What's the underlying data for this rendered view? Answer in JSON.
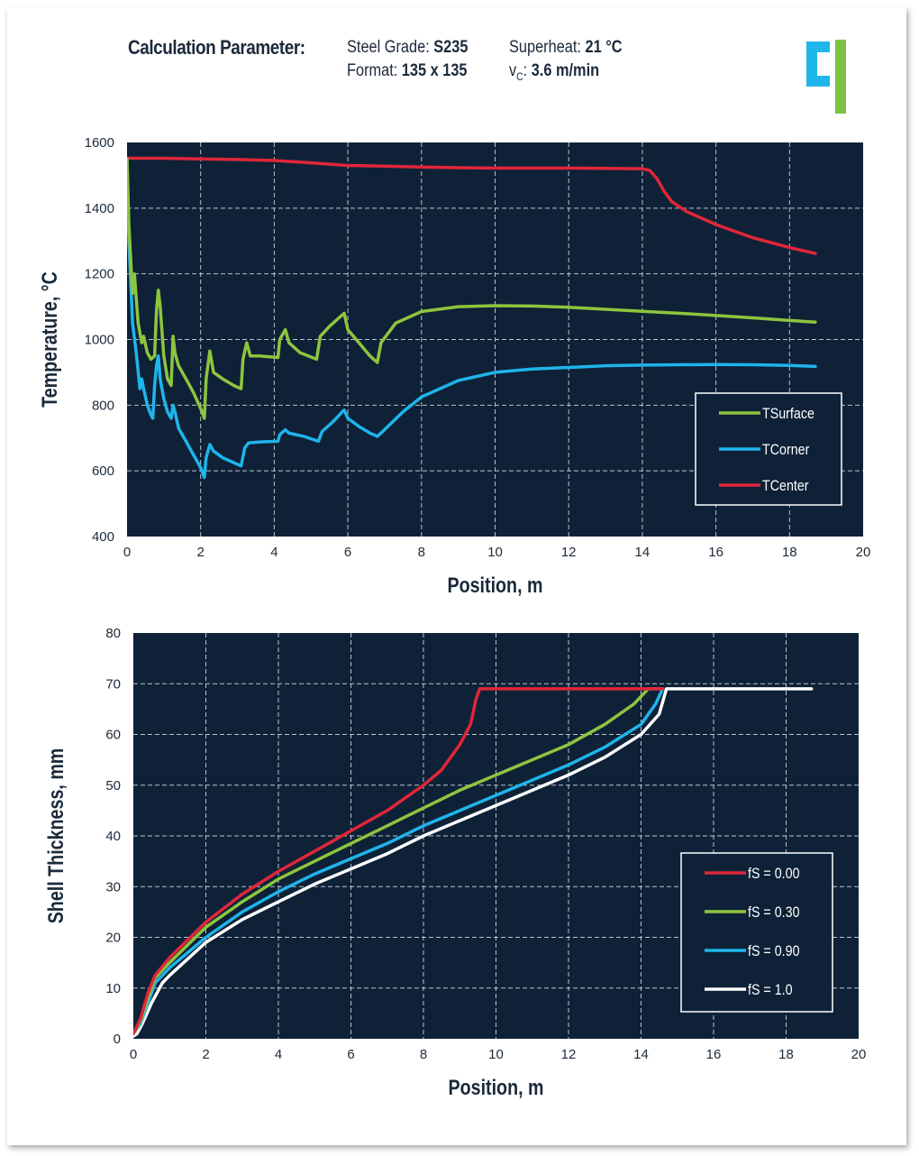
{
  "header": {
    "title": "Calculation Parameter:",
    "steel_grade_label": "Steel Grade: ",
    "steel_grade_value": "S235",
    "format_label": "Format: ",
    "format_value": "135 x 135",
    "superheat_label": "Superheat: ",
    "superheat_value": "21 °C",
    "vc_label_main": "v",
    "vc_label_sub": "C",
    "vc_label_colon": ": ",
    "vc_value": "3.6 m/min"
  },
  "logo": {
    "icon": "company-logo-icon",
    "colors": [
      "#1fb6e9",
      "#7cc242"
    ]
  },
  "colors": {
    "plot_bg": "#0e2137",
    "grid": "#b9c2cc",
    "red": "#e0263a",
    "green": "#8dc53e",
    "blue": "#1fb4ea",
    "white": "#ffffff"
  },
  "chart_data": [
    {
      "type": "line",
      "xlabel": "Position, m",
      "ylabel": "Temperature, °C",
      "xlim": [
        0,
        20
      ],
      "ylim": [
        400,
        1600
      ],
      "xticks": [
        0,
        2,
        4,
        6,
        8,
        10,
        12,
        14,
        16,
        18,
        20
      ],
      "yticks": [
        400,
        600,
        800,
        1000,
        1200,
        1400,
        1600
      ],
      "grid": true,
      "legend_position": "bottom-right",
      "series": [
        {
          "name": "TSurface",
          "color": "#8dc53e",
          "points": [
            [
              0,
              1550
            ],
            [
              0.05,
              1350
            ],
            [
              0.15,
              1140
            ],
            [
              0.2,
              1200
            ],
            [
              0.3,
              1050
            ],
            [
              0.4,
              990
            ],
            [
              0.45,
              1010
            ],
            [
              0.55,
              960
            ],
            [
              0.65,
              940
            ],
            [
              0.75,
              950
            ],
            [
              0.8,
              1090
            ],
            [
              0.85,
              1150
            ],
            [
              0.9,
              1100
            ],
            [
              1.0,
              950
            ],
            [
              1.1,
              880
            ],
            [
              1.2,
              860
            ],
            [
              1.25,
              1010
            ],
            [
              1.3,
              960
            ],
            [
              1.4,
              920
            ],
            [
              1.6,
              880
            ],
            [
              1.8,
              840
            ],
            [
              2.0,
              790
            ],
            [
              2.1,
              760
            ],
            [
              2.15,
              880
            ],
            [
              2.25,
              965
            ],
            [
              2.35,
              900
            ],
            [
              2.6,
              880
            ],
            [
              2.9,
              860
            ],
            [
              3.1,
              850
            ],
            [
              3.15,
              940
            ],
            [
              3.25,
              990
            ],
            [
              3.35,
              950
            ],
            [
              3.6,
              950
            ],
            [
              4.1,
              945
            ],
            [
              4.15,
              1000
            ],
            [
              4.3,
              1030
            ],
            [
              4.4,
              990
            ],
            [
              4.7,
              960
            ],
            [
              5.15,
              940
            ],
            [
              5.25,
              1010
            ],
            [
              5.5,
              1040
            ],
            [
              5.8,
              1070
            ],
            [
              5.9,
              1080
            ],
            [
              6.0,
              1030
            ],
            [
              6.3,
              990
            ],
            [
              6.6,
              950
            ],
            [
              6.8,
              930
            ],
            [
              6.9,
              990
            ],
            [
              7.3,
              1050
            ],
            [
              8,
              1085
            ],
            [
              9,
              1100
            ],
            [
              10,
              1103
            ],
            [
              11,
              1102
            ],
            [
              12,
              1098
            ],
            [
              13,
              1092
            ],
            [
              14,
              1086
            ],
            [
              15,
              1080
            ],
            [
              16,
              1073
            ],
            [
              17,
              1066
            ],
            [
              18,
              1058
            ],
            [
              18.7,
              1053
            ]
          ]
        },
        {
          "name": "TCorner",
          "color": "#1fb4ea",
          "points": [
            [
              0,
              1550
            ],
            [
              0.05,
              1300
            ],
            [
              0.15,
              1050
            ],
            [
              0.25,
              960
            ],
            [
              0.35,
              850
            ],
            [
              0.4,
              880
            ],
            [
              0.45,
              850
            ],
            [
              0.55,
              800
            ],
            [
              0.65,
              770
            ],
            [
              0.7,
              760
            ],
            [
              0.75,
              860
            ],
            [
              0.8,
              920
            ],
            [
              0.85,
              950
            ],
            [
              0.9,
              880
            ],
            [
              1.0,
              820
            ],
            [
              1.1,
              780
            ],
            [
              1.2,
              760
            ],
            [
              1.25,
              800
            ],
            [
              1.3,
              780
            ],
            [
              1.4,
              730
            ],
            [
              1.6,
              690
            ],
            [
              1.8,
              650
            ],
            [
              2.0,
              610
            ],
            [
              2.1,
              580
            ],
            [
              2.15,
              640
            ],
            [
              2.25,
              680
            ],
            [
              2.35,
              660
            ],
            [
              2.6,
              640
            ],
            [
              2.9,
              625
            ],
            [
              3.1,
              615
            ],
            [
              3.2,
              670
            ],
            [
              3.3,
              685
            ],
            [
              3.6,
              688
            ],
            [
              4.1,
              690
            ],
            [
              4.15,
              710
            ],
            [
              4.3,
              725
            ],
            [
              4.4,
              715
            ],
            [
              4.8,
              705
            ],
            [
              5.2,
              690
            ],
            [
              5.3,
              720
            ],
            [
              5.6,
              750
            ],
            [
              5.85,
              780
            ],
            [
              5.9,
              785
            ],
            [
              6.0,
              760
            ],
            [
              6.3,
              735
            ],
            [
              6.6,
              715
            ],
            [
              6.8,
              705
            ],
            [
              6.9,
              715
            ],
            [
              7.5,
              780
            ],
            [
              8,
              825
            ],
            [
              9,
              875
            ],
            [
              10,
              900
            ],
            [
              11,
              910
            ],
            [
              12,
              915
            ],
            [
              13,
              920
            ],
            [
              14,
              922
            ],
            [
              15,
              923
            ],
            [
              16,
              924
            ],
            [
              17,
              923
            ],
            [
              18,
              921
            ],
            [
              18.7,
              918
            ]
          ]
        },
        {
          "name": "TCenter",
          "color": "#e0263a",
          "points": [
            [
              0,
              1552
            ],
            [
              1,
              1552
            ],
            [
              2,
              1550
            ],
            [
              3,
              1548
            ],
            [
              4,
              1545
            ],
            [
              5,
              1538
            ],
            [
              6,
              1530
            ],
            [
              7,
              1528
            ],
            [
              8,
              1525
            ],
            [
              9,
              1523
            ],
            [
              10,
              1522
            ],
            [
              11,
              1522
            ],
            [
              12,
              1522
            ],
            [
              13,
              1521
            ],
            [
              14.0,
              1520
            ],
            [
              14.2,
              1515
            ],
            [
              14.4,
              1490
            ],
            [
              14.6,
              1450
            ],
            [
              14.8,
              1420
            ],
            [
              15.2,
              1390
            ],
            [
              16,
              1350
            ],
            [
              17,
              1310
            ],
            [
              18,
              1280
            ],
            [
              18.7,
              1262
            ]
          ]
        }
      ]
    },
    {
      "type": "line",
      "xlabel": "Position, m",
      "ylabel": "Shell Thickness, mm",
      "xlim": [
        0,
        20
      ],
      "ylim": [
        0,
        80
      ],
      "xticks": [
        0,
        2,
        4,
        6,
        8,
        10,
        12,
        14,
        16,
        18,
        20
      ],
      "yticks": [
        0,
        10,
        20,
        30,
        40,
        50,
        60,
        70,
        80
      ],
      "grid": true,
      "legend_position": "bottom-right",
      "series": [
        {
          "name": "fS = 0.00",
          "color": "#e0263a",
          "points": [
            [
              0,
              1
            ],
            [
              0.2,
              4
            ],
            [
              0.4,
              9
            ],
            [
              0.6,
              12.5
            ],
            [
              1,
              16
            ],
            [
              2,
              23
            ],
            [
              3,
              28.5
            ],
            [
              4,
              33
            ],
            [
              5,
              37
            ],
            [
              6,
              41
            ],
            [
              7,
              45
            ],
            [
              8,
              50
            ],
            [
              8.5,
              53
            ],
            [
              9,
              58
            ],
            [
              9.3,
              62
            ],
            [
              9.45,
              67
            ],
            [
              9.55,
              69
            ],
            [
              10,
              69
            ],
            [
              12,
              69
            ],
            [
              14,
              69
            ],
            [
              14.6,
              69
            ]
          ]
        },
        {
          "name": "fS = 0.30",
          "color": "#8dc53e",
          "points": [
            [
              0,
              1
            ],
            [
              0.2,
              3.5
            ],
            [
              0.4,
              8
            ],
            [
              0.6,
              12
            ],
            [
              1,
              15
            ],
            [
              2,
              22
            ],
            [
              3,
              27
            ],
            [
              4,
              31.5
            ],
            [
              5,
              35
            ],
            [
              6,
              38.5
            ],
            [
              7,
              42
            ],
            [
              8,
              45.5
            ],
            [
              9,
              49
            ],
            [
              10,
              52
            ],
            [
              11,
              55
            ],
            [
              12,
              58
            ],
            [
              13,
              62
            ],
            [
              13.8,
              66
            ],
            [
              14.2,
              69
            ],
            [
              14.6,
              69
            ]
          ]
        },
        {
          "name": "fS = 0.90",
          "color": "#1fb4ea",
          "points": [
            [
              0,
              1
            ],
            [
              0.2,
              3
            ],
            [
              0.4,
              7
            ],
            [
              0.6,
              11
            ],
            [
              1,
              14
            ],
            [
              2,
              20
            ],
            [
              3,
              25
            ],
            [
              4,
              29
            ],
            [
              5,
              32.5
            ],
            [
              6,
              35.5
            ],
            [
              7,
              38.5
            ],
            [
              8,
              42
            ],
            [
              9,
              45
            ],
            [
              10,
              48
            ],
            [
              11,
              51
            ],
            [
              12,
              54
            ],
            [
              13,
              57.5
            ],
            [
              14,
              62
            ],
            [
              14.4,
              66
            ],
            [
              14.6,
              69
            ]
          ]
        },
        {
          "name": "fS = 1.0",
          "color": "#ffffff",
          "points": [
            [
              0,
              0.5
            ],
            [
              0.1,
              1
            ],
            [
              0.25,
              3
            ],
            [
              0.5,
              7
            ],
            [
              0.8,
              11
            ],
            [
              1,
              12.5
            ],
            [
              2,
              19
            ],
            [
              3,
              23.5
            ],
            [
              4,
              27
            ],
            [
              5,
              30.5
            ],
            [
              6,
              33.5
            ],
            [
              7,
              36.5
            ],
            [
              8,
              40
            ],
            [
              9,
              43
            ],
            [
              10,
              46
            ],
            [
              11,
              49
            ],
            [
              12,
              52
            ],
            [
              13,
              55.5
            ],
            [
              14,
              60
            ],
            [
              14.5,
              64
            ],
            [
              14.7,
              69
            ],
            [
              16,
              69
            ],
            [
              18,
              69
            ],
            [
              18.7,
              69
            ]
          ]
        }
      ]
    }
  ]
}
